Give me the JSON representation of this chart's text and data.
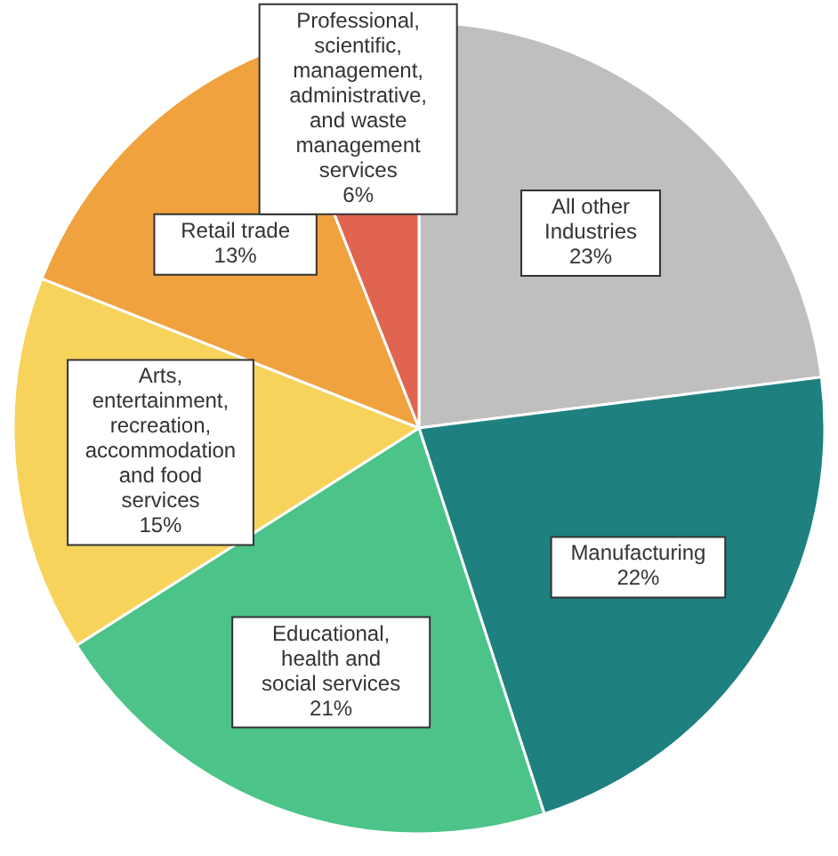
{
  "chart_data": {
    "type": "pie",
    "categories": [
      "All other Industries",
      "Manufacturing",
      "Educational, health and social services",
      "Arts, entertainment, recreation, accommodation and food services",
      "Retail trade",
      "Professional, scientific, management, administrative, and waste management services"
    ],
    "values": [
      23,
      22,
      21,
      15,
      13,
      6
    ],
    "value_labels": [
      "23%",
      "22%",
      "21%",
      "15%",
      "13%",
      "6%"
    ],
    "colors": [
      "#bfbfbf",
      "#1f8080",
      "#4cc388",
      "#f7d35c",
      "#f0a23e",
      "#e06450"
    ]
  }
}
